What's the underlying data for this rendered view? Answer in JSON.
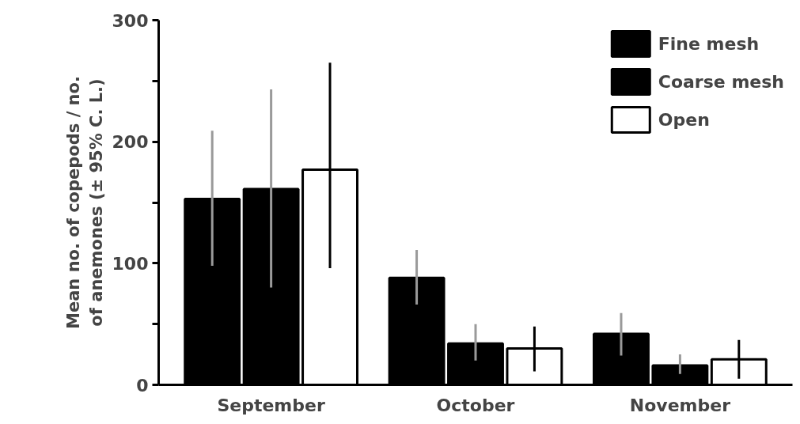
{
  "chart_data": {
    "type": "bar",
    "ylabel": "Mean no. of copepods / no.\nof anemones (± 95% C. L.)",
    "categories": [
      "September",
      "October",
      "November"
    ],
    "series": [
      {
        "name": "Fine mesh",
        "color": "#000000",
        "values": [
          153,
          88,
          42
        ],
        "errors": [
          [
            98,
            209
          ],
          [
            66,
            111
          ],
          [
            24,
            59
          ]
        ]
      },
      {
        "name": "Coarse mesh",
        "color": "#000000",
        "values": [
          161,
          34,
          16
        ],
        "errors": [
          [
            80,
            243
          ],
          [
            20,
            50
          ],
          [
            9,
            25
          ]
        ]
      },
      {
        "name": "Open",
        "color": "#ffffff",
        "values": [
          177,
          30,
          21
        ],
        "errors": [
          [
            96,
            265
          ],
          [
            11,
            48
          ],
          [
            5,
            37
          ]
        ]
      }
    ],
    "ylim": [
      0,
      300
    ],
    "yticks": [
      0,
      {
        "value": 50,
        "label": null
      },
      100,
      {
        "value": 150,
        "label": null
      },
      200,
      {
        "value": 250,
        "label": null
      },
      300
    ],
    "grid": false,
    "legend": "top right"
  }
}
